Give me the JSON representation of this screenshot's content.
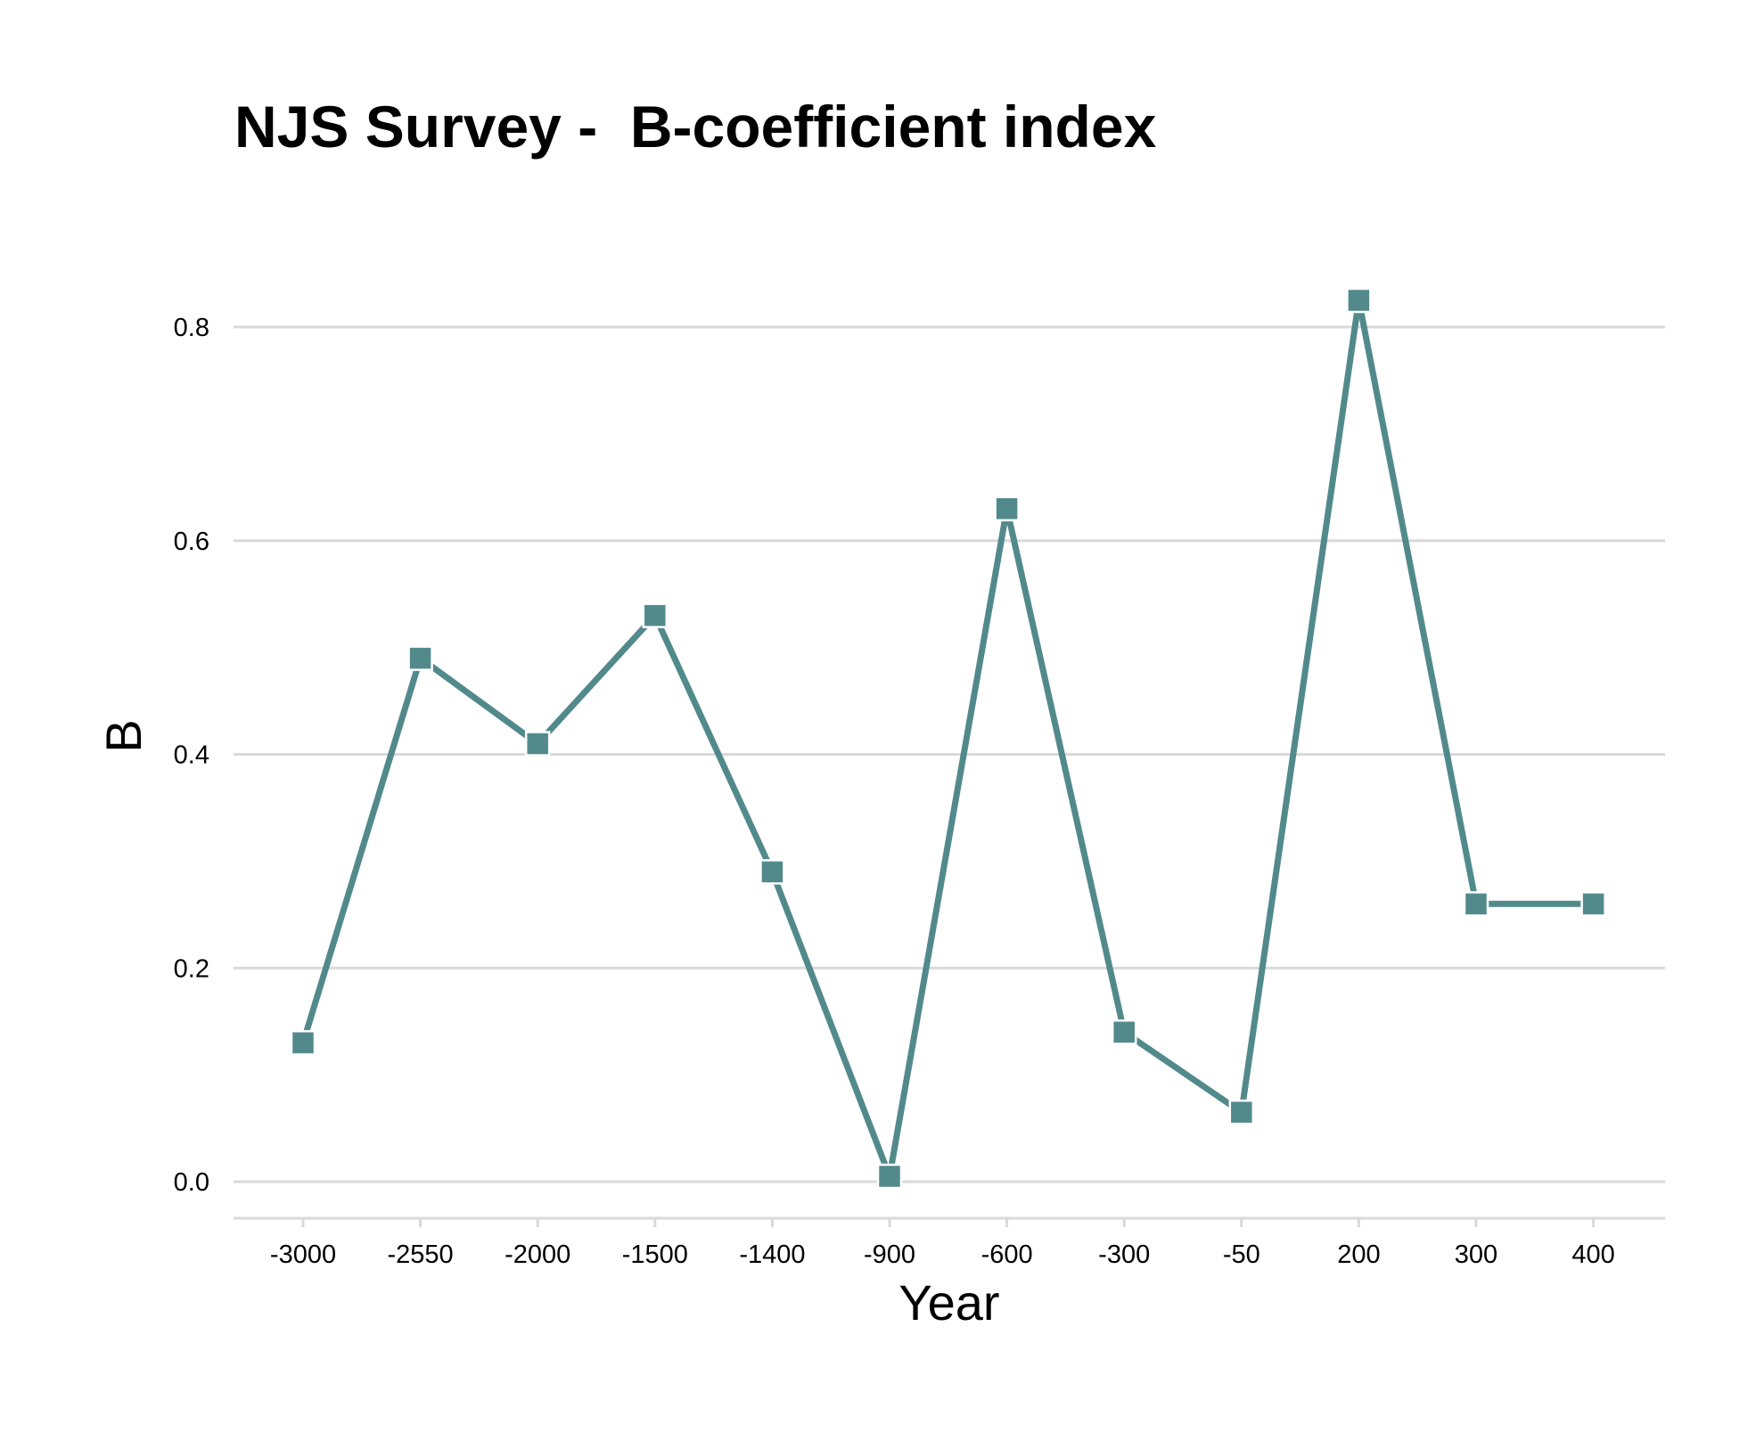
{
  "chart_data": {
    "type": "line",
    "title": "NJS Survey -  B-coefficient index",
    "xlabel": "Year",
    "ylabel": "B",
    "categories": [
      "-3000",
      "-2550",
      "-2000",
      "-1500",
      "-1400",
      "-900",
      "-600",
      "-300",
      "-50",
      "200",
      "300",
      "400"
    ],
    "series": [
      {
        "values": [
          0.13,
          0.49,
          0.41,
          0.53,
          0.29,
          0.005,
          0.63,
          0.14,
          0.065,
          0.825,
          0.26,
          0.26
        ],
        "color": "#528a8c",
        "marker": "square"
      }
    ],
    "yticks": [
      "0.0",
      "0.2",
      "0.4",
      "0.6",
      "0.8"
    ],
    "ylim": [
      -0.03,
      0.9
    ],
    "grid": "horizontal",
    "legend": "none"
  }
}
